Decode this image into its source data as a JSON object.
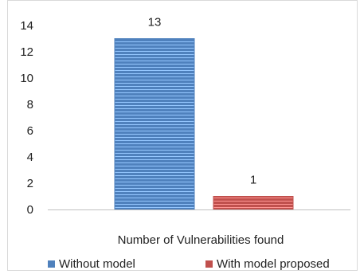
{
  "chart_data": {
    "type": "bar",
    "title": "",
    "xlabel": "",
    "ylabel": "",
    "categories": [
      "Number of Vulnerabilities found"
    ],
    "series": [
      {
        "name": "Without model",
        "values": [
          13
        ],
        "color": "#4f81bd"
      },
      {
        "name": "With model proposed",
        "values": [
          1
        ],
        "color": "#c0504d"
      }
    ],
    "data_labels": [
      "13",
      "1"
    ],
    "ylim": [
      0,
      14
    ],
    "yticks": [
      "0",
      "2",
      "4",
      "6",
      "8",
      "10",
      "12",
      "14"
    ],
    "legend_position": "bottom",
    "grid": false,
    "bar_fill": "horizontal-line-hatch"
  }
}
